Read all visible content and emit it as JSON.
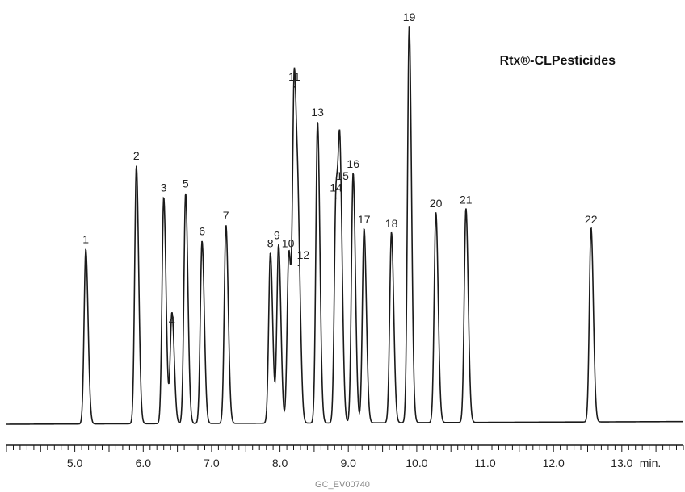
{
  "chart_data": {
    "type": "line",
    "annotation": "Rtx®-CLPesticides",
    "footer": "GC_EV00740",
    "x_unit_label": "min.",
    "xlim": [
      4.0,
      13.9
    ],
    "ylim": [
      0,
      100
    ],
    "grid": false,
    "x_ticks": [
      {
        "value": 5.0,
        "label": "5.0"
      },
      {
        "value": 6.0,
        "label": "6.0"
      },
      {
        "value": 7.0,
        "label": "7.0"
      },
      {
        "value": 8.0,
        "label": "8.0"
      },
      {
        "value": 9.0,
        "label": "9.0"
      },
      {
        "value": 10.0,
        "label": "10.0"
      },
      {
        "value": 11.0,
        "label": "11.0"
      },
      {
        "value": 12.0,
        "label": "12.0"
      },
      {
        "value": 13.0,
        "label": "13.0"
      }
    ],
    "peaks": [
      {
        "label": "1",
        "rt": 5.16,
        "height": 44
      },
      {
        "label": "2",
        "rt": 5.9,
        "height": 65
      },
      {
        "label": "3",
        "rt": 6.3,
        "height": 57
      },
      {
        "label": "4",
        "rt": 6.42,
        "height": 28
      },
      {
        "label": "5",
        "rt": 6.62,
        "height": 58
      },
      {
        "label": "6",
        "rt": 6.86,
        "height": 46
      },
      {
        "label": "7",
        "rt": 7.21,
        "height": 50
      },
      {
        "label": "8",
        "rt": 7.86,
        "height": 43
      },
      {
        "label": "9",
        "rt": 7.98,
        "height": 45
      },
      {
        "label": "10",
        "rt": 8.13,
        "height": 43
      },
      {
        "label": "11",
        "rt": 8.21,
        "height": 85
      },
      {
        "label": "12",
        "rt": 8.27,
        "height": 40
      },
      {
        "label": "13",
        "rt": 8.55,
        "height": 76
      },
      {
        "label": "14",
        "rt": 8.82,
        "height": 57
      },
      {
        "label": "15",
        "rt": 8.88,
        "height": 60
      },
      {
        "label": "16",
        "rt": 9.07,
        "height": 63
      },
      {
        "label": "17",
        "rt": 9.23,
        "height": 49
      },
      {
        "label": "18",
        "rt": 9.63,
        "height": 48
      },
      {
        "label": "19",
        "rt": 9.89,
        "height": 100
      },
      {
        "label": "20",
        "rt": 10.28,
        "height": 53
      },
      {
        "label": "21",
        "rt": 10.72,
        "height": 54
      },
      {
        "label": "22",
        "rt": 12.55,
        "height": 49
      }
    ]
  }
}
